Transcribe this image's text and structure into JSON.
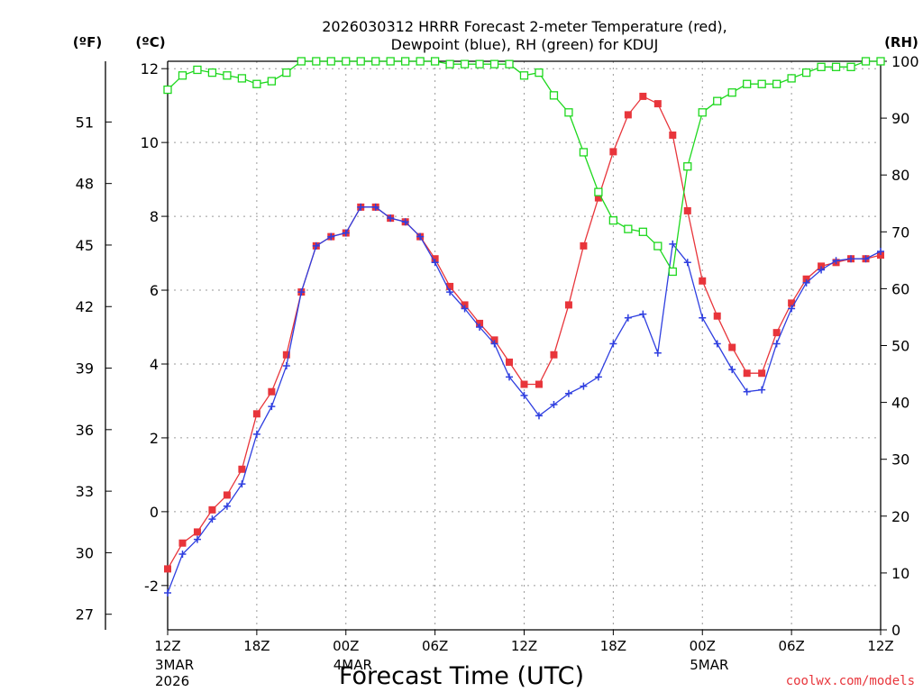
{
  "chart_data": {
    "type": "line",
    "title_line1": "2026030312 HRRR Forecast 2-meter Temperature (red),",
    "title_line2": "Dewpoint (blue), RH (green) for KDUJ",
    "xlabel": "Forecast Time (UTC)",
    "unit_f": "(ºF)",
    "unit_c": "(ºC)",
    "unit_rh": "(RH)",
    "credit": "coolwx.com/models",
    "ylim_c": [
      -3.2,
      12.2
    ],
    "ylim_rh": [
      0,
      100
    ],
    "grid": true,
    "x_ticks": [
      {
        "h": 0,
        "label": "12Z",
        "sub1": "3MAR",
        "sub2": "2026"
      },
      {
        "h": 6,
        "label": "18Z",
        "sub1": "",
        "sub2": ""
      },
      {
        "h": 12,
        "label": "00Z",
        "sub1": "4MAR",
        "sub2": ""
      },
      {
        "h": 18,
        "label": "06Z",
        "sub1": "",
        "sub2": ""
      },
      {
        "h": 24,
        "label": "12Z",
        "sub1": "",
        "sub2": ""
      },
      {
        "h": 30,
        "label": "18Z",
        "sub1": "",
        "sub2": ""
      },
      {
        "h": 36,
        "label": "00Z",
        "sub1": "5MAR",
        "sub2": ""
      },
      {
        "h": 42,
        "label": "06Z",
        "sub1": "",
        "sub2": ""
      },
      {
        "h": 48,
        "label": "12Z",
        "sub1": "",
        "sub2": ""
      }
    ],
    "y_ticks_c": [
      "-2",
      "0",
      "2",
      "4",
      "6",
      "8",
      "10",
      "12"
    ],
    "y_ticks_f": [
      "27",
      "30",
      "33",
      "36",
      "39",
      "42",
      "45",
      "48",
      "51"
    ],
    "y_ticks_rh": [
      "0",
      "10",
      "20",
      "30",
      "40",
      "50",
      "60",
      "70",
      "80",
      "90",
      "100"
    ],
    "x_hours": [
      0,
      1,
      2,
      3,
      4,
      5,
      6,
      7,
      8,
      9,
      10,
      11,
      12,
      13,
      14,
      15,
      16,
      17,
      18,
      19,
      20,
      21,
      22,
      23,
      24,
      25,
      26,
      27,
      28,
      29,
      30,
      31,
      32,
      33,
      34,
      35,
      36,
      37,
      38,
      39,
      40,
      41,
      42,
      43,
      44,
      45,
      46,
      47,
      48
    ],
    "series": [
      {
        "name": "Temperature",
        "color": "#e8353b",
        "marker": "filled-square",
        "values": [
          -1.55,
          -0.85,
          -0.55,
          0.05,
          0.45,
          1.15,
          2.65,
          3.25,
          4.25,
          5.95,
          7.2,
          7.45,
          7.55,
          8.25,
          8.25,
          7.95,
          7.85,
          7.45,
          6.85,
          6.1,
          5.6,
          5.1,
          4.65,
          4.05,
          3.45,
          3.45,
          4.25,
          5.6,
          7.2,
          8.5,
          9.75,
          10.75,
          11.25,
          11.05,
          10.2,
          8.15,
          6.25,
          5.3,
          4.45,
          3.75,
          3.75,
          4.85,
          5.65,
          6.3,
          6.65,
          6.75,
          6.85,
          6.85,
          6.95
        ]
      },
      {
        "name": "Dewpoint",
        "color": "#2f3fe0",
        "marker": "plus",
        "values": [
          -2.2,
          -1.15,
          -0.75,
          -0.2,
          0.15,
          0.75,
          2.1,
          2.85,
          3.95,
          5.95,
          7.2,
          7.45,
          7.55,
          8.25,
          8.25,
          7.95,
          7.85,
          7.45,
          6.75,
          5.95,
          5.5,
          5.0,
          4.55,
          3.65,
          3.15,
          2.6,
          2.9,
          3.2,
          3.4,
          3.65,
          4.55,
          5.25,
          5.35,
          4.3,
          7.25,
          6.75,
          5.25,
          4.55,
          3.85,
          3.25,
          3.3,
          4.55,
          5.5,
          6.2,
          6.55,
          6.8,
          6.85,
          6.85,
          7.05
        ]
      },
      {
        "name": "RH",
        "color": "#1ed81e",
        "marker": "open-square",
        "values": [
          95,
          97.5,
          98.5,
          98,
          97.5,
          97,
          96,
          96.5,
          98,
          100,
          100,
          100,
          100,
          100,
          100,
          100,
          100,
          100,
          100,
          99.5,
          99.5,
          99.5,
          99.5,
          99.5,
          97.5,
          98,
          94,
          91,
          84,
          77,
          72,
          70.5,
          70,
          67.5,
          63,
          81.5,
          91,
          93,
          94.5,
          96,
          96,
          96,
          97,
          98,
          99,
          99,
          99,
          100,
          100
        ]
      }
    ]
  }
}
